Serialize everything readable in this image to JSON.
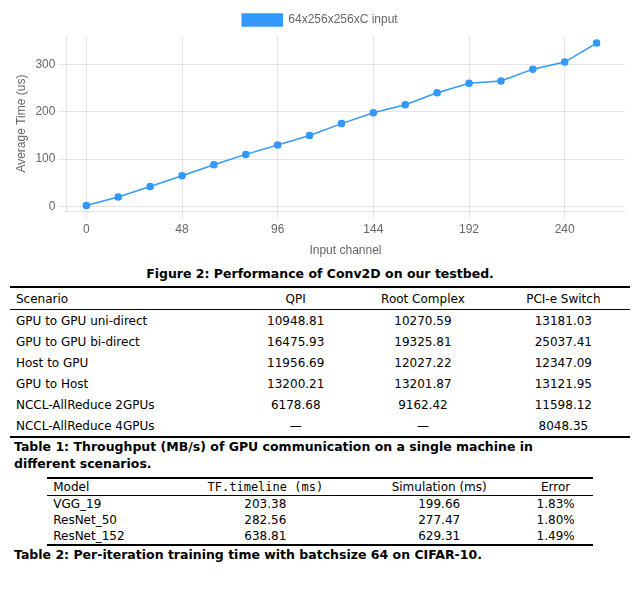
{
  "chart_data": {
    "type": "line",
    "x": [
      0,
      16,
      32,
      48,
      64,
      80,
      96,
      112,
      128,
      144,
      160,
      176,
      192,
      208,
      224,
      240,
      256
    ],
    "series": [
      {
        "name": "64x256x256xC input",
        "color": "#3399ff",
        "marker": "circle",
        "line_style": "solid",
        "values": [
          2,
          20,
          42,
          65,
          88,
          110,
          130,
          150,
          175,
          198,
          215,
          240,
          260,
          265,
          290,
          305,
          345
        ],
        "yerr": 5
      }
    ],
    "xlabel": "Input channel",
    "ylabel": "Average Time (us)",
    "xlim": [
      -10,
      270
    ],
    "ylim": [
      -10,
      360
    ],
    "xticks": [
      0,
      48,
      96,
      144,
      192,
      240
    ],
    "yticks": [
      0,
      100,
      200,
      300
    ],
    "grid": true,
    "legend": "top",
    "caption": "Figure 2: Performance of Conv2D on our testbed."
  },
  "tables": [
    {
      "headers": [
        "Scenario",
        "QPI",
        "Root Complex",
        "PCI-e Switch"
      ],
      "rows": [
        [
          "GPU to GPU uni-direct",
          "10948.81",
          "10270.59",
          "13181.03"
        ],
        [
          "GPU to GPU bi-direct",
          "16475.93",
          "19325.81",
          "25037.41"
        ],
        [
          "Host to GPU",
          "11956.69",
          "12027.22",
          "12347.09"
        ],
        [
          "GPU to Host",
          "13200.21",
          "13201.87",
          "13121.95"
        ],
        [
          "NCCL-AllReduce 2GPUs",
          "6178.68",
          "9162.42",
          "11598.12"
        ],
        [
          "NCCL-AllReduce 4GPUs",
          "—",
          "—",
          "8048.35"
        ]
      ],
      "caption": [
        "Table 1: Throughput (MB/s) of GPU communication on a single machine in",
        "different scenarios."
      ]
    },
    {
      "headers": [
        "Model",
        "TF.timeline (ms)",
        "Simulation (ms)",
        "Error"
      ],
      "rows": [
        [
          "VGG_19",
          "203.38",
          "199.66",
          "1.83%"
        ],
        [
          "ResNet_50",
          "282.56",
          "277.47",
          "1.80%"
        ],
        [
          "ResNet_152",
          "638.81",
          "629.31",
          "1.49%"
        ]
      ],
      "caption": [
        "Table 2: Per-iteration training time with batchsize 64 on CIFAR-10."
      ]
    }
  ]
}
